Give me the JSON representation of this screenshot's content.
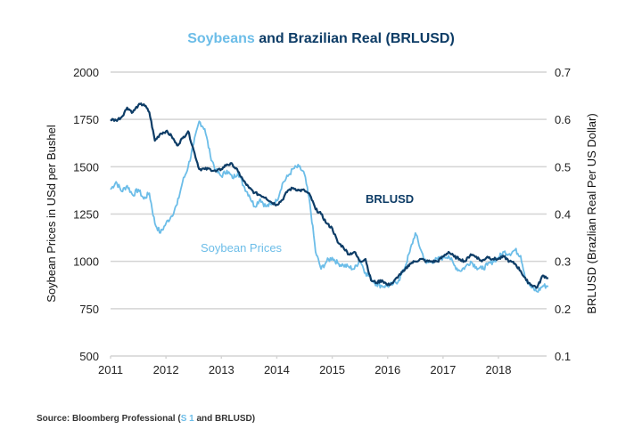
{
  "chart_data": {
    "type": "line",
    "title_parts": [
      {
        "text": "Soybeans",
        "color": "#6cbde8"
      },
      {
        "text": " and Brazilian Real (BRLUSD)",
        "color": "#0d3c66"
      }
    ],
    "title": "Soybeans and Brazilian Real (BRLUSD)",
    "xlabel": "",
    "ylabel": "Soybean Prices in USd per Bushel",
    "y2label": "BRLUSD (Brazlian Real Per US Dollar)",
    "xlim": [
      2011,
      2018.9
    ],
    "ylim": [
      500,
      2000
    ],
    "y2lim": [
      0.1,
      0.7
    ],
    "x_ticks": [
      2011,
      2012,
      2013,
      2014,
      2015,
      2016,
      2017,
      2018
    ],
    "x_tick_labels": [
      "2011",
      "2012",
      "2013",
      "2014",
      "2015",
      "2016",
      "2017",
      "2018"
    ],
    "y_ticks": [
      500,
      750,
      1000,
      1250,
      1500,
      1750,
      2000
    ],
    "y_tick_labels": [
      "500",
      "750",
      "1000",
      "1250",
      "1500",
      "1750",
      "2000"
    ],
    "y2_ticks": [
      0.1,
      0.2,
      0.3,
      0.4,
      0.5,
      0.6,
      0.7
    ],
    "y2_tick_labels": [
      "0.1",
      "0.2",
      "0.3",
      "0.4",
      "0.5",
      "0.6",
      "0.7"
    ],
    "grid": "horizontal",
    "series": [
      {
        "name": "Soybean Prices",
        "axis": "left",
        "color": "#6cbde8",
        "label": "Soybean Prices",
        "x": [
          2011.0,
          2011.1,
          2011.2,
          2011.3,
          2011.4,
          2011.5,
          2011.6,
          2011.7,
          2011.8,
          2011.9,
          2012.0,
          2012.1,
          2012.2,
          2012.3,
          2012.4,
          2012.5,
          2012.6,
          2012.7,
          2012.8,
          2012.9,
          2013.0,
          2013.1,
          2013.2,
          2013.3,
          2013.4,
          2013.5,
          2013.6,
          2013.7,
          2013.8,
          2013.9,
          2014.0,
          2014.1,
          2014.2,
          2014.3,
          2014.4,
          2014.5,
          2014.6,
          2014.7,
          2014.8,
          2014.9,
          2015.0,
          2015.1,
          2015.2,
          2015.3,
          2015.4,
          2015.5,
          2015.6,
          2015.7,
          2015.8,
          2015.9,
          2016.0,
          2016.1,
          2016.2,
          2016.3,
          2016.4,
          2016.5,
          2016.6,
          2016.7,
          2016.8,
          2016.9,
          2017.0,
          2017.1,
          2017.2,
          2017.3,
          2017.4,
          2017.5,
          2017.6,
          2017.7,
          2017.8,
          2017.9,
          2018.0,
          2018.1,
          2018.2,
          2018.3,
          2018.4,
          2018.5,
          2018.6,
          2018.7,
          2018.8,
          2018.9
        ],
        "values": [
          1380,
          1420,
          1370,
          1400,
          1350,
          1380,
          1330,
          1360,
          1200,
          1150,
          1200,
          1240,
          1300,
          1420,
          1500,
          1620,
          1740,
          1700,
          1560,
          1480,
          1450,
          1480,
          1440,
          1470,
          1400,
          1350,
          1290,
          1330,
          1290,
          1300,
          1320,
          1410,
          1450,
          1490,
          1500,
          1460,
          1300,
          1050,
          960,
          1000,
          1020,
          990,
          980,
          970,
          960,
          1010,
          940,
          910,
          880,
          870,
          870,
          880,
          900,
          960,
          1050,
          1150,
          1060,
          990,
          1000,
          1010,
          1020,
          1030,
          980,
          950,
          970,
          1000,
          970,
          960,
          980,
          1000,
          1020,
          1050,
          1040,
          1060,
          1030,
          900,
          860,
          840,
          870,
          870
        ]
      },
      {
        "name": "BRLUSD",
        "axis": "right",
        "color": "#0d3c66",
        "label": "BRLUSD",
        "x": [
          2011.0,
          2011.1,
          2011.2,
          2011.3,
          2011.4,
          2011.5,
          2011.6,
          2011.7,
          2011.8,
          2011.9,
          2012.0,
          2012.1,
          2012.2,
          2012.3,
          2012.4,
          2012.5,
          2012.6,
          2012.7,
          2012.8,
          2012.9,
          2013.0,
          2013.1,
          2013.2,
          2013.3,
          2013.4,
          2013.5,
          2013.6,
          2013.7,
          2013.8,
          2013.9,
          2014.0,
          2014.1,
          2014.2,
          2014.3,
          2014.4,
          2014.5,
          2014.6,
          2014.7,
          2014.8,
          2014.9,
          2015.0,
          2015.1,
          2015.2,
          2015.3,
          2015.4,
          2015.5,
          2015.6,
          2015.7,
          2015.8,
          2015.9,
          2016.0,
          2016.1,
          2016.2,
          2016.3,
          2016.4,
          2016.5,
          2016.6,
          2016.7,
          2016.8,
          2016.9,
          2017.0,
          2017.1,
          2017.2,
          2017.3,
          2017.4,
          2017.5,
          2017.6,
          2017.7,
          2017.8,
          2017.9,
          2018.0,
          2018.1,
          2018.2,
          2018.3,
          2018.4,
          2018.5,
          2018.6,
          2018.7,
          2018.8,
          2018.9
        ],
        "values": [
          0.6,
          0.598,
          0.605,
          0.625,
          0.615,
          0.63,
          0.632,
          0.615,
          0.555,
          0.57,
          0.575,
          0.565,
          0.545,
          0.56,
          0.575,
          0.535,
          0.495,
          0.495,
          0.495,
          0.49,
          0.495,
          0.505,
          0.505,
          0.49,
          0.47,
          0.455,
          0.445,
          0.44,
          0.435,
          0.425,
          0.42,
          0.43,
          0.45,
          0.455,
          0.45,
          0.45,
          0.44,
          0.41,
          0.4,
          0.38,
          0.37,
          0.34,
          0.33,
          0.315,
          0.32,
          0.3,
          0.305,
          0.26,
          0.255,
          0.26,
          0.25,
          0.255,
          0.27,
          0.28,
          0.295,
          0.3,
          0.305,
          0.3,
          0.3,
          0.3,
          0.31,
          0.32,
          0.31,
          0.305,
          0.3,
          0.315,
          0.31,
          0.3,
          0.31,
          0.305,
          0.305,
          0.31,
          0.3,
          0.295,
          0.28,
          0.26,
          0.25,
          0.245,
          0.27,
          0.265
        ]
      }
    ]
  },
  "source": {
    "prefix": "Source: Bloomberg Professional (",
    "highlight": "S 1",
    "suffix": " and BRLUSD)",
    "highlight_color": "#6cbde8"
  }
}
